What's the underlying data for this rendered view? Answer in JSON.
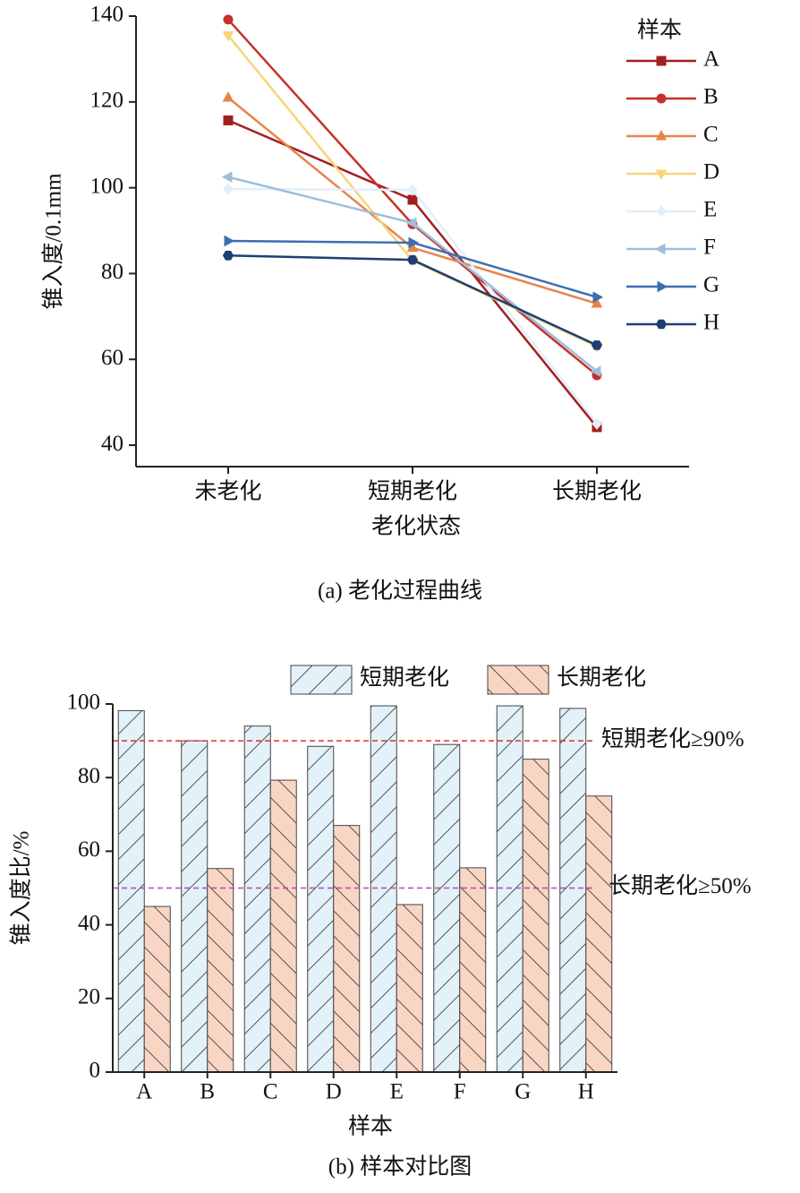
{
  "chart_data": [
    {
      "type": "line",
      "title": "(a) 老化过程曲线",
      "categories": [
        "未老化",
        "短期老化",
        "长期老化"
      ],
      "xlabel": "老化状态",
      "ylabel": "锥入度/0.1mm",
      "ylim": [
        35,
        140
      ],
      "yticks": [
        40,
        60,
        80,
        100,
        120,
        140
      ],
      "legend_title": "样本",
      "legend": "upper right",
      "series": [
        {
          "name": "A",
          "color": "#a31f1f",
          "marker": "square",
          "values": [
            115.7,
            97.2,
            44.2
          ]
        },
        {
          "name": "B",
          "color": "#c8312a",
          "marker": "circle",
          "values": [
            139.2,
            91.5,
            56.3
          ]
        },
        {
          "name": "C",
          "color": "#e8844a",
          "marker": "triangle-up",
          "values": [
            121,
            86,
            73
          ]
        },
        {
          "name": "D",
          "color": "#f7d57a",
          "marker": "triangle-down",
          "values": [
            135.5,
            83,
            63
          ]
        },
        {
          "name": "E",
          "color": "#e2eff8",
          "marker": "diamond",
          "values": [
            99.7,
            99.5,
            45
          ]
        },
        {
          "name": "F",
          "color": "#9dbfdc",
          "marker": "triangle-left",
          "values": [
            102.5,
            91.8,
            57.2
          ]
        },
        {
          "name": "G",
          "color": "#3c6fb0",
          "marker": "triangle-right",
          "values": [
            87.6,
            87.2,
            74.5
          ]
        },
        {
          "name": "H",
          "color": "#1d3f73",
          "marker": "hexagon",
          "values": [
            84.2,
            83.2,
            63.3
          ]
        }
      ]
    },
    {
      "type": "bar",
      "title": "(b) 样本对比图",
      "categories": [
        "A",
        "B",
        "C",
        "D",
        "E",
        "F",
        "G",
        "H"
      ],
      "xlabel": "样本",
      "ylabel": "锥入度比/%",
      "ylim": [
        0,
        100
      ],
      "yticks": [
        0,
        20,
        40,
        60,
        80,
        100
      ],
      "legend": "top",
      "series": [
        {
          "name": "短期老化",
          "color": "#e3f1f8",
          "hatch": "/",
          "values": [
            98.2,
            90,
            94,
            88.5,
            99.5,
            89,
            99.5,
            98.8
          ]
        },
        {
          "name": "长期老化",
          "color": "#f9d5c4",
          "hatch": "\\",
          "values": [
            45,
            55.3,
            79.3,
            67,
            45.5,
            55.5,
            85,
            75
          ]
        }
      ],
      "reference_lines": [
        {
          "value": 90,
          "label": "短期老化≥90%",
          "color": "#d9302b"
        },
        {
          "value": 50,
          "label": "长期老化≥50%",
          "color": "#b04aa8"
        }
      ]
    }
  ]
}
